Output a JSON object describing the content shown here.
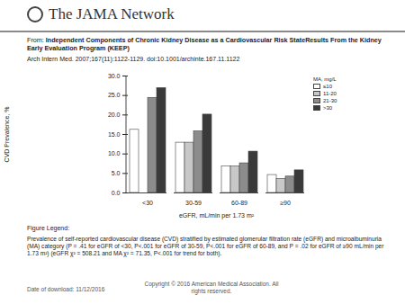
{
  "header": {
    "logo": "The JAMA Network",
    "from_label": "From:",
    "title": "Independent Components of Chronic Kidney Disease as a Cardiovascular Risk StateResults From the Kidney Early Evaluation Program (KEEP)",
    "citation": "Arch Intern Med. 2007;167(11):1122-1129. doi:10.1001/archinte.167.11.1122"
  },
  "chart_data": {
    "type": "bar",
    "categories": [
      "<30",
      "30-59",
      "60-89",
      "≥90"
    ],
    "x_label": "eGFR, mL/min per 1.73 m²",
    "y_label": "CVD Prevalence, %",
    "legend_title": "MA, mg/L",
    "legend": "top-right",
    "series": [
      {
        "name": "≤10",
        "color": "#ffffff",
        "values": [
          16.2,
          12.9,
          6.8,
          4.6
        ]
      },
      {
        "name": "11-20",
        "color": "#c8c8c8",
        "values": [
          null,
          12.9,
          6.8,
          3.6
        ]
      },
      {
        "name": "21-30",
        "color": "#8c8c8c",
        "values": [
          24.4,
          15.8,
          7.6,
          4.2
        ]
      },
      {
        "name": ">30",
        "color": "#3a3a3a",
        "values": [
          26.9,
          20.1,
          10.6,
          5.8
        ]
      }
    ],
    "ylim": [
      0,
      30
    ],
    "yticks": [
      {
        "value": 0,
        "label": "0.0"
      },
      {
        "value": 5,
        "label": "5.0"
      },
      {
        "value": 10,
        "label": "10.0"
      },
      {
        "value": 15,
        "label": "15.0"
      },
      {
        "value": 20,
        "label": "20.0"
      },
      {
        "value": 25,
        "label": "25.0"
      },
      {
        "value": 30,
        "label": "30.0"
      }
    ],
    "grid": false
  },
  "figure_legend": {
    "label": "Figure Legend:",
    "text": "Prevalence of self-reported cardiovascular disease (CVD) stratified by estimated glomerular filtration rate (eGFR) and microalbuminuria (MA) category (P = .41 for eGFR of <30, P<.001 for eGFR of 30-59, P<.001 for eGFR of 60-89, and P = .02 for eGFR of ≥90 mL/min per 1.73 m²) (eGFR χ² = 508.21 and MA χ² = 71.35, P<.001 for trend for both)."
  },
  "footer": {
    "date": "Date of download:  11/12/2016",
    "copyright": "Copyright © 2016 American Medical Association. All rights reserved."
  }
}
